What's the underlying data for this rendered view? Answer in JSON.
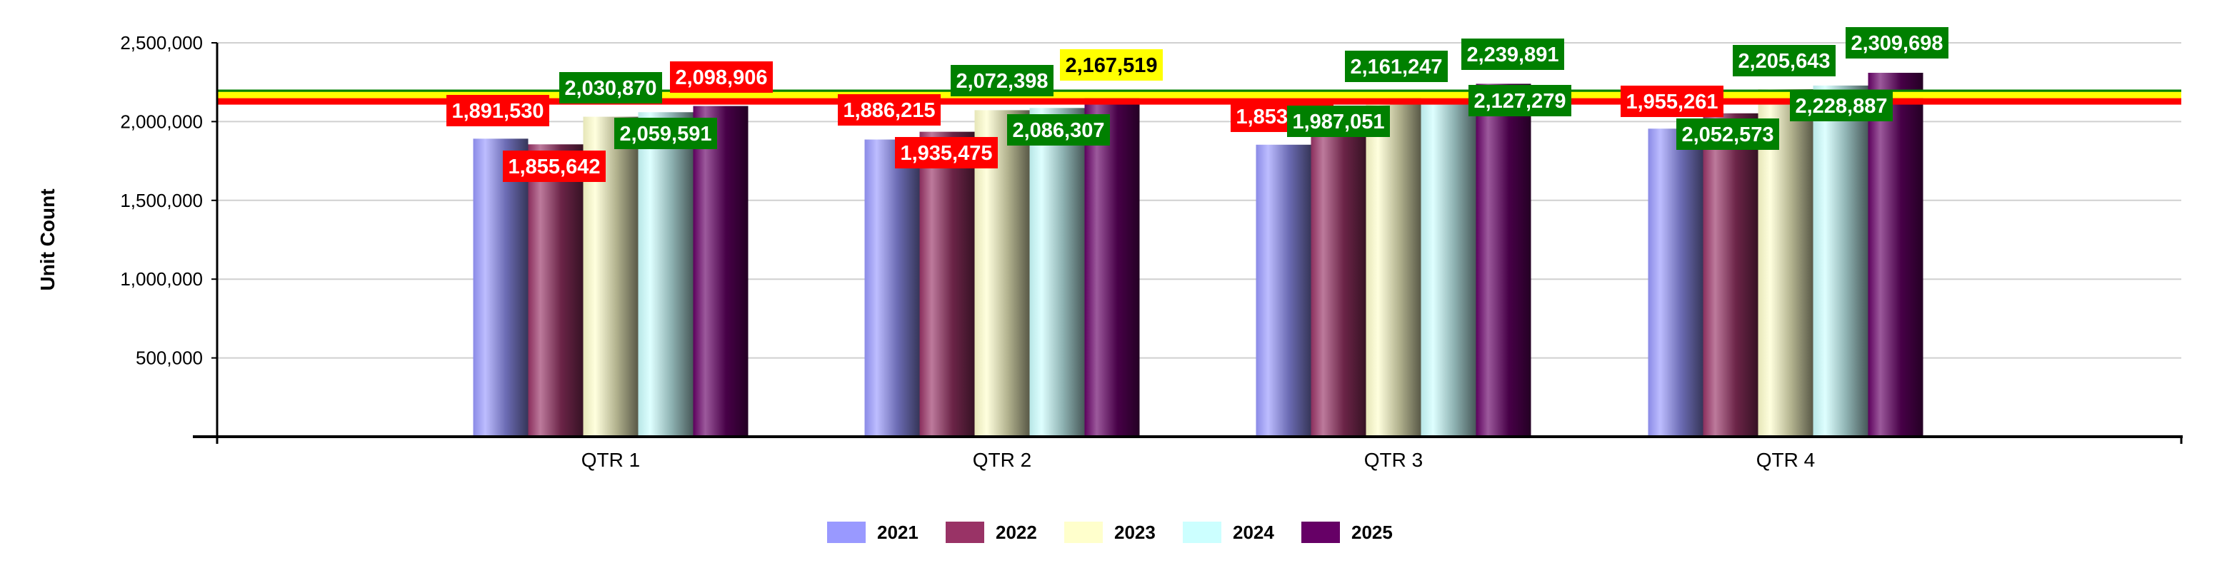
{
  "chart_data": {
    "type": "bar",
    "title": "",
    "xlabel": "",
    "ylabel": "Unit Count",
    "ylim": [
      0,
      2500000
    ],
    "yticks": [
      {
        "value": 500000,
        "label": "500,000"
      },
      {
        "value": 1000000,
        "label": "1,000,000"
      },
      {
        "value": 1500000,
        "label": "1,500,000"
      },
      {
        "value": 2000000,
        "label": "2,000,000"
      },
      {
        "value": 2500000,
        "label": "2,500,000"
      }
    ],
    "grid": true,
    "legend_position": "bottom",
    "categories": [
      "QTR 1",
      "QTR 2",
      "QTR 3",
      "QTR 4"
    ],
    "series": [
      {
        "name": "2021",
        "color": "#9999FF",
        "values": [
          1891530,
          1886215,
          1853283,
          1955261
        ],
        "labels": [
          "1,891,530",
          "1,886,215",
          "1,853,283",
          "1,955,261"
        ],
        "label_colors": [
          "#FF0000",
          "#FF0000",
          "#FF0000",
          "#FF0000"
        ]
      },
      {
        "name": "2022",
        "color": "#993366",
        "values": [
          1855642,
          1935475,
          1987051,
          2052573
        ],
        "labels": [
          "1,855,642",
          "1,935,475",
          "1,987,051",
          "2,052,573"
        ],
        "label_colors": [
          "#FF0000",
          "#FF0000",
          "#008000",
          "#008000"
        ]
      },
      {
        "name": "2023",
        "color": "#FFFFCC",
        "values": [
          2030870,
          2072398,
          2161247,
          2205643
        ],
        "labels": [
          "2,030,870",
          "2,072,398",
          "2,161,247",
          "2,205,643"
        ],
        "label_colors": [
          "#008000",
          "#008000",
          "#008000",
          "#008000"
        ]
      },
      {
        "name": "2024",
        "color": "#CCFFFF",
        "values": [
          2059591,
          2086307,
          2127279,
          2228887
        ],
        "labels": [
          "2,059,591",
          "2,086,307",
          "2,127,279",
          "2,228,887"
        ],
        "label_colors": [
          "#008000",
          "#008000",
          "#008000",
          "#008000"
        ]
      },
      {
        "name": "2025",
        "color": "#660066",
        "values": [
          2098906,
          2167519,
          2239891,
          2309698
        ],
        "labels": [
          "2,098,906",
          "2,167,519",
          "2,239,891",
          "2,309,698"
        ],
        "label_colors": [
          "#FF0000",
          "#FFFF00",
          "#008000",
          "#008000"
        ]
      }
    ],
    "reference_lines": [
      {
        "value": 2183000,
        "color": "#008000"
      },
      {
        "value": 2168000,
        "color": "#FFFF00"
      },
      {
        "value": 2128000,
        "color": "#FF0000"
      }
    ]
  }
}
